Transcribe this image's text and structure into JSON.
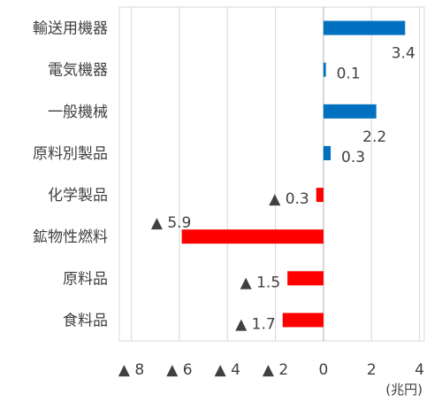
{
  "chart_data": {
    "type": "bar",
    "orientation": "horizontal",
    "categories": [
      "輸送用機器",
      "電気機器",
      "一般機械",
      "原料別製品",
      "化学製品",
      "鉱物性燃料",
      "原料品",
      "食料品"
    ],
    "values": [
      3.4,
      0.1,
      2.2,
      0.3,
      -0.3,
      -5.9,
      -1.5,
      -1.7
    ],
    "value_labels": [
      "3.4",
      "0.1",
      "2.2",
      "0.3",
      "▲ 0.3",
      "▲ 5.9",
      "▲ 1.5",
      "▲ 1.7"
    ],
    "x_ticks": [
      -8,
      -6,
      -4,
      -2,
      0,
      2,
      4
    ],
    "x_tick_labels": [
      "▲ 8",
      "▲ 6",
      "▲ 4",
      "▲ 2",
      "0",
      "2",
      "4"
    ],
    "xlim": [
      -8.5,
      4.2
    ],
    "x_unit": "(兆円)",
    "grid": true,
    "colors": {
      "positive": "#0070C0",
      "negative": "#FF0000",
      "grid": "#D9D9D9",
      "text": "#404040"
    }
  }
}
